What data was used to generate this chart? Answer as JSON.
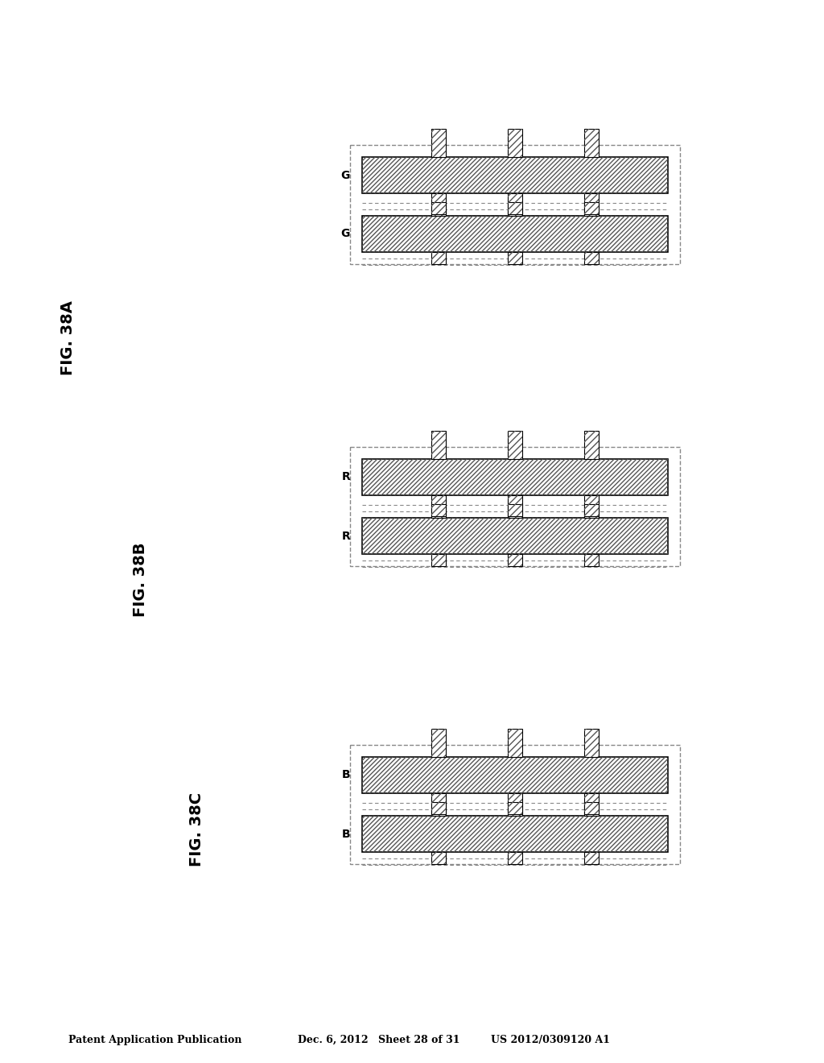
{
  "title_text": "Patent Application Publication",
  "date_text": "Dec. 6, 2012",
  "sheet_text": "Sheet 28 of 31",
  "patent_text": "US 2012/0309120 A1",
  "fig_labels": [
    "FIG. 38A",
    "FIG. 38B",
    "FIG. 38C"
  ],
  "panel_labels": [
    "G",
    "G",
    "R",
    "R",
    "B",
    "B"
  ],
  "bg_color": "#ffffff",
  "hatch_color": "#555555",
  "line_color": "#000000",
  "dashed_color": "#666666"
}
